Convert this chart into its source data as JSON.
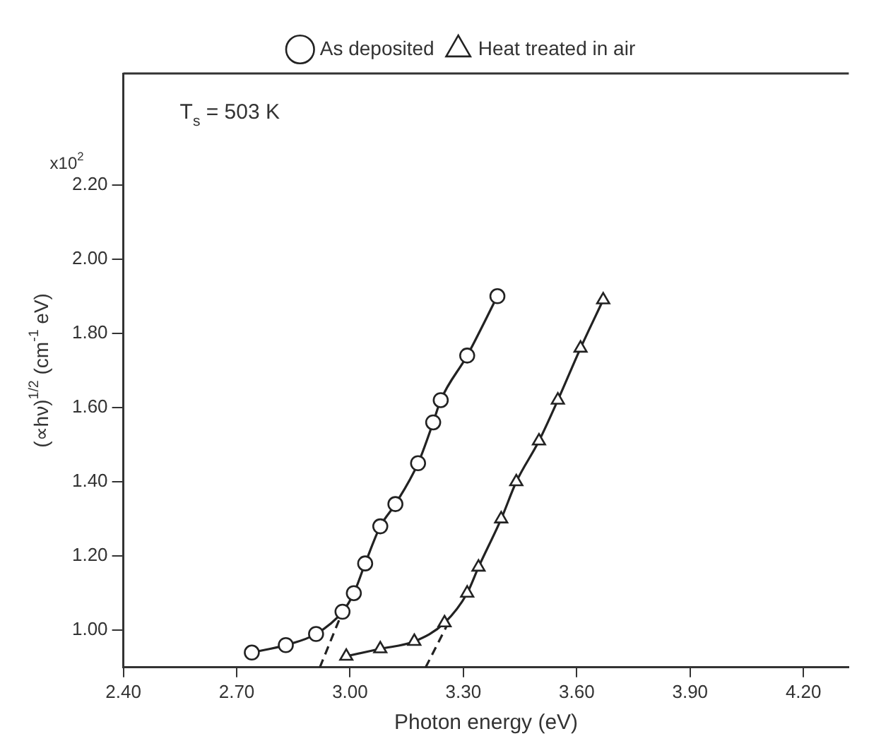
{
  "chart_data": {
    "type": "line",
    "xlabel": "Photon energy (eV)",
    "ylabel": "(∝hν)$^{1/2}$ (cm$^{-1}$ eV)",
    "annotations": [
      "T$_{s}$ = 503 K",
      "x10$^{2}$"
    ],
    "xlim": [
      2.4,
      4.32
    ],
    "ylim": [
      0.9,
      2.5
    ],
    "xticks": [
      {
        "value": 2.4,
        "label": "2.40"
      },
      {
        "value": 2.7,
        "label": "2.70"
      },
      {
        "value": 3.0,
        "label": "3.00"
      },
      {
        "value": 3.3,
        "label": "3.30"
      },
      {
        "value": 3.6,
        "label": "3.60"
      },
      {
        "value": 3.9,
        "label": "3.90"
      },
      {
        "value": 4.2,
        "label": "4.20"
      }
    ],
    "yticks": [
      {
        "value": 1.0,
        "label": "1.00"
      },
      {
        "value": 1.2,
        "label": "1.20"
      },
      {
        "value": 1.4,
        "label": "1.40"
      },
      {
        "value": 1.6,
        "label": "1.60"
      },
      {
        "value": 1.8,
        "label": "1.80"
      },
      {
        "value": 2.0,
        "label": "2.00"
      },
      {
        "value": 2.2,
        "label": "2.20"
      }
    ],
    "grid": false,
    "legend": "top",
    "series": [
      {
        "name": "As deposited",
        "color": "#222222",
        "marker": "circle",
        "line_style": "solid",
        "x": [
          2.74,
          2.83,
          2.91,
          2.98,
          3.01,
          3.04,
          3.08,
          3.12,
          3.18,
          3.22,
          3.24,
          3.31,
          3.39
        ],
        "values": [
          0.94,
          0.96,
          0.99,
          1.05,
          1.1,
          1.18,
          1.28,
          1.34,
          1.45,
          1.56,
          1.62,
          1.74,
          1.9
        ]
      },
      {
        "name": "Heat treated in air",
        "color": "#222222",
        "marker": "triangle",
        "line_style": "solid",
        "x": [
          2.99,
          3.08,
          3.17,
          3.25,
          3.31,
          3.34,
          3.4,
          3.44,
          3.5,
          3.55,
          3.61,
          3.67
        ],
        "values": [
          0.93,
          0.95,
          0.97,
          1.02,
          1.1,
          1.17,
          1.3,
          1.4,
          1.51,
          1.62,
          1.76,
          1.89
        ]
      },
      {
        "color": "#222222",
        "marker": "none",
        "line_style": "dashed",
        "x": [
          2.92,
          2.98
        ],
        "values": [
          0.9,
          1.05
        ]
      },
      {
        "color": "#222222",
        "marker": "none",
        "line_style": "dashed",
        "x": [
          3.2,
          3.26
        ],
        "values": [
          0.9,
          1.02
        ]
      }
    ]
  }
}
